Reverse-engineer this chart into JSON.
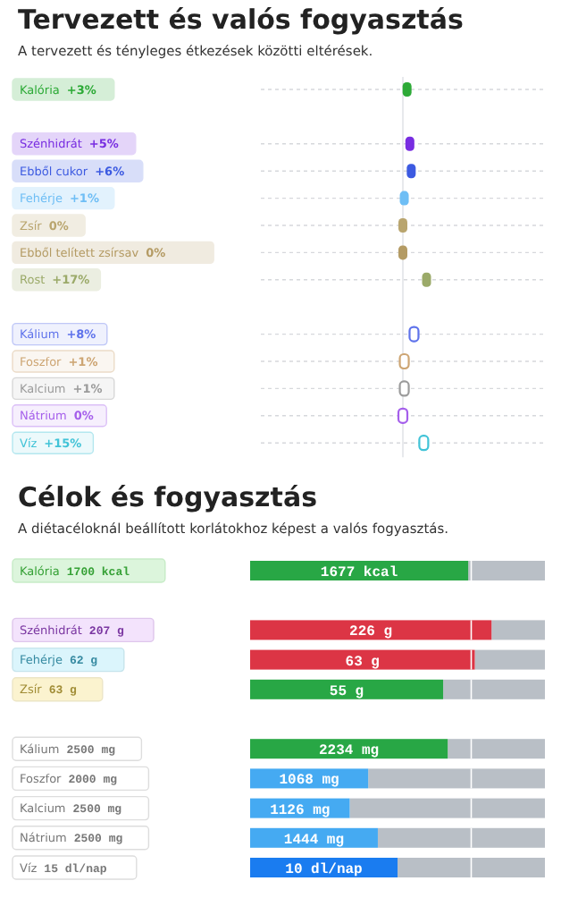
{
  "chart_data": [
    {
      "type": "other",
      "title": "Tervezett és valós fogyasztás",
      "subtitle": "A tervezett és tényleges étkezések közötti eltérések.",
      "categories": [
        "Kalória",
        null,
        "Szénhidrát",
        "Ebből cukor",
        "Fehérje",
        "Zsír",
        "Ebből telített zsírsav",
        "Rost",
        null,
        "Kálium",
        "Foszfor",
        "Kalcium",
        "Nátrium",
        "Víz"
      ],
      "series": [
        {
          "colors": [
            "#d5eed7",
            null,
            "#e4d5f9",
            "#d8def9",
            "#e2f2fd",
            "#f1ede2",
            "#f0ebe0",
            "#ebeee1",
            null,
            null,
            null,
            null,
            null,
            null
          ],
          "values": [
            3,
            null,
            5,
            6,
            1,
            0,
            0,
            17,
            null,
            null,
            null,
            null,
            null,
            null
          ],
          "value_labels": [
            "+3%",
            null,
            "+5%",
            "+6%",
            "+1%",
            "0%",
            "0%",
            "+17%",
            null,
            null,
            null,
            null,
            null,
            null
          ]
        },
        {
          "colors": [
            null,
            null,
            null,
            null,
            null,
            null,
            null,
            null,
            null,
            "#eff1fd",
            "#faf6f1",
            "#f5f5f5",
            "#f6effd",
            "#ecf9fb"
          ],
          "values": [
            null,
            null,
            null,
            null,
            null,
            null,
            null,
            null,
            null,
            8,
            1,
            1,
            0,
            15
          ],
          "value_labels": [
            null,
            null,
            null,
            null,
            null,
            null,
            null,
            null,
            null,
            "+8%",
            "+1%",
            "+1%",
            "0%",
            "+15%"
          ]
        }
      ]
    },
    {
      "type": "other",
      "title": "Célok és fogyasztás",
      "subtitle": "A diétacéloknál beállított korlátokhoz képest a valós fogyasztás.",
      "categories": [
        "Kalória",
        null,
        "Szénhidrát",
        "Fehérje",
        "Zsír",
        null,
        "Kálium",
        "Foszfor",
        "Kalcium",
        "Nátrium",
        "Víz"
      ],
      "series": [
        {
          "colors": [
            "#28a745",
            null,
            "#dc3545",
            "#dc3545",
            "#28a745",
            null,
            "#28a745",
            "#45aaf2",
            "#45aaf2",
            "#45aaf2",
            "#1a7cf0"
          ],
          "values": [
            1677,
            null,
            226,
            63,
            55,
            null,
            2234,
            1068,
            1126,
            1444,
            10
          ],
          "value_labels": [
            "1677 kcal",
            null,
            "226 g",
            "63 g",
            "55 g",
            null,
            "2234 mg",
            "1068 mg",
            "1126 mg",
            "1444 mg",
            "10 dl/nap"
          ]
        },
        {
          "colors": [
            "#dcf5dc",
            null,
            "#f3e3fc",
            "#dbf5fc",
            "#fbf3cf",
            null,
            "#ffffff",
            "#ffffff",
            "#ffffff",
            "#ffffff",
            "#ffffff"
          ],
          "values": [
            1700,
            null,
            207,
            62,
            63,
            null,
            2500,
            2000,
            2500,
            2500,
            15
          ],
          "value_labels": [
            "1700 kcal",
            null,
            "207 g",
            "62 g",
            "63 g",
            null,
            "2500 mg",
            "2000 mg",
            "2500 mg",
            "2500 mg",
            "15 dl/nap"
          ]
        }
      ]
    }
  ]
}
